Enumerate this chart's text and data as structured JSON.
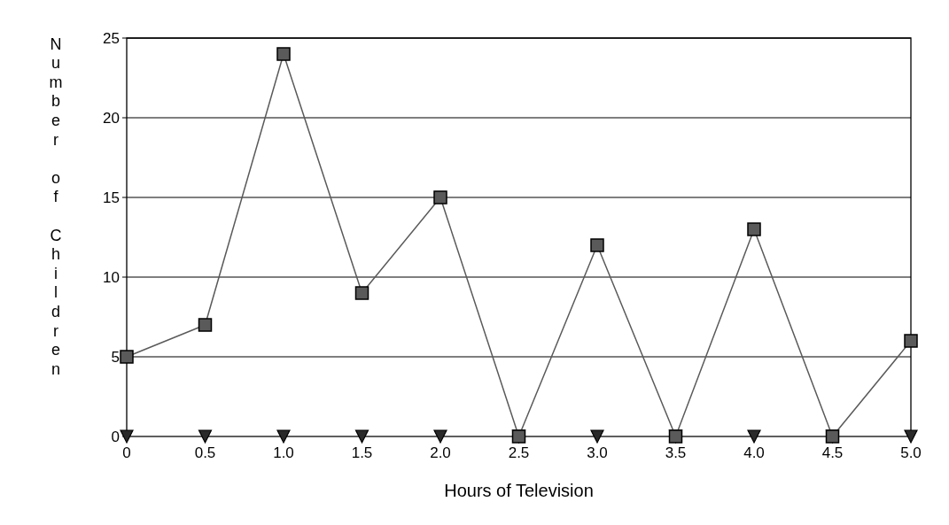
{
  "chart_data": {
    "type": "line",
    "xlabel": "Hours of Television",
    "ylabel": "Number of Children",
    "x": [
      0,
      0.5,
      1,
      1.5,
      2,
      2.5,
      3,
      3.5,
      4,
      4.5,
      5
    ],
    "xlim": [
      0,
      5
    ],
    "xticks": [
      0,
      0.5,
      {
        "value": 1,
        "label": "1.0"
      },
      1.5,
      {
        "value": 2,
        "label": "2.0"
      },
      2.5,
      {
        "value": 3,
        "label": "3.0"
      },
      3.5,
      {
        "value": 4,
        "label": "4.0"
      },
      4.5,
      {
        "value": 5,
        "label": "5.0"
      }
    ],
    "ylim": [
      0,
      25
    ],
    "yticks": [
      0,
      5,
      10,
      15,
      20,
      25
    ],
    "grid": "y",
    "line_style": "solid",
    "series": [
      {
        "color": "#5a5a5a",
        "marker": "square",
        "values": [
          5,
          7,
          24,
          9,
          15,
          0,
          12,
          0,
          13,
          0,
          6
        ]
      },
      {
        "color": "#2a2a2a",
        "marker": "triangle",
        "values": [
          0,
          0,
          0,
          0,
          0,
          0,
          0,
          0,
          0,
          0,
          0
        ]
      }
    ]
  }
}
